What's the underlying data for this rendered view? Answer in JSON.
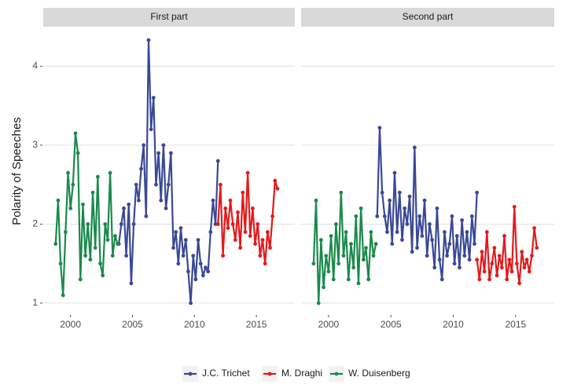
{
  "chart_data": [
    {
      "type": "line",
      "title": "First part",
      "ylabel": "Polarity of Speeches",
      "xlim": [
        1997.8,
        2018.1
      ],
      "xticks": [
        2000,
        2005,
        2010,
        2015
      ],
      "ylim": [
        0.86,
        4.48
      ],
      "yticks": [
        1,
        2,
        3,
        4
      ],
      "grid": "y",
      "series": [
        {
          "name": "J.C. Trichet",
          "color": "#3a4896",
          "x": [
            2003.9,
            2004.1,
            2004.3,
            2004.5,
            2004.7,
            2004.9,
            2005.1,
            2005.3,
            2005.5,
            2005.7,
            2005.9,
            2006.1,
            2006.3,
            2006.5,
            2006.7,
            2006.9,
            2007.1,
            2007.3,
            2007.5,
            2007.7,
            2007.9,
            2008.1,
            2008.3,
            2008.5,
            2008.7,
            2008.9,
            2009.1,
            2009.3,
            2009.5,
            2009.7,
            2009.9,
            2010.1,
            2010.3,
            2010.5,
            2010.7,
            2010.9,
            2011.1,
            2011.3,
            2011.5,
            2011.7,
            2011.9
          ],
          "values": [
            1.75,
            2.0,
            2.2,
            1.6,
            2.25,
            1.25,
            2.0,
            2.5,
            2.3,
            2.7,
            3.0,
            2.1,
            4.33,
            3.2,
            3.6,
            2.5,
            2.9,
            2.3,
            3.0,
            2.2,
            2.5,
            2.9,
            1.7,
            1.9,
            1.5,
            1.95,
            1.6,
            1.8,
            1.4,
            1.0,
            1.6,
            1.3,
            1.8,
            1.5,
            1.35,
            1.45,
            1.4,
            1.9,
            2.3,
            2.0,
            2.8
          ]
        },
        {
          "name": "M. Draghi",
          "color": "#e31a1c",
          "x": [
            2011.9,
            2012.1,
            2012.3,
            2012.5,
            2012.7,
            2012.9,
            2013.1,
            2013.3,
            2013.5,
            2013.7,
            2013.9,
            2014.1,
            2014.3,
            2014.5,
            2014.7,
            2014.9,
            2015.1,
            2015.3,
            2015.5,
            2015.7,
            2015.9,
            2016.1,
            2016.3,
            2016.5,
            2016.7
          ],
          "values": [
            2.0,
            2.5,
            1.6,
            2.2,
            1.95,
            2.3,
            2.0,
            1.8,
            2.15,
            1.7,
            2.4,
            1.9,
            2.65,
            1.85,
            2.2,
            1.75,
            2.0,
            1.6,
            1.8,
            1.5,
            1.9,
            1.7,
            2.1,
            2.55,
            2.45
          ]
        },
        {
          "name": "W. Duisenberg",
          "color": "#1a8a4c",
          "x": [
            1998.8,
            1999.0,
            1999.2,
            1999.4,
            1999.6,
            1999.8,
            2000.0,
            2000.2,
            2000.4,
            2000.6,
            2000.8,
            2001.0,
            2001.2,
            2001.4,
            2001.6,
            2001.8,
            2002.0,
            2002.2,
            2002.4,
            2002.6,
            2002.8,
            2003.0,
            2003.2,
            2003.4,
            2003.6,
            2003.8
          ],
          "values": [
            1.75,
            2.3,
            1.5,
            1.1,
            1.9,
            2.65,
            2.2,
            2.5,
            3.15,
            2.9,
            1.3,
            2.25,
            1.6,
            2.0,
            1.55,
            2.4,
            1.7,
            2.6,
            1.5,
            1.35,
            2.0,
            1.8,
            2.65,
            1.6,
            1.85,
            1.75
          ]
        }
      ]
    },
    {
      "type": "line",
      "title": "Second part",
      "xlim": [
        1997.8,
        2018.1
      ],
      "xticks": [
        2000,
        2005,
        2010,
        2015
      ],
      "ylim": [
        0.86,
        4.48
      ],
      "yticks": [
        1,
        2,
        3,
        4
      ],
      "grid": "y",
      "series": [
        {
          "name": "J.C. Trichet",
          "color": "#3a4896",
          "x": [
            2003.9,
            2004.1,
            2004.3,
            2004.5,
            2004.7,
            2004.9,
            2005.1,
            2005.3,
            2005.5,
            2005.7,
            2005.9,
            2006.1,
            2006.3,
            2006.5,
            2006.7,
            2006.9,
            2007.1,
            2007.3,
            2007.5,
            2007.7,
            2007.9,
            2008.1,
            2008.3,
            2008.5,
            2008.7,
            2008.9,
            2009.1,
            2009.3,
            2009.5,
            2009.7,
            2009.9,
            2010.1,
            2010.3,
            2010.5,
            2010.7,
            2010.9,
            2011.1,
            2011.3,
            2011.5,
            2011.7,
            2011.9
          ],
          "values": [
            2.1,
            3.22,
            2.4,
            2.1,
            1.9,
            2.3,
            1.75,
            2.65,
            1.9,
            2.4,
            1.8,
            2.2,
            2.0,
            2.35,
            1.65,
            2.97,
            1.7,
            2.1,
            1.85,
            2.3,
            1.6,
            2.0,
            1.8,
            1.45,
            2.2,
            1.55,
            1.3,
            1.9,
            1.6,
            1.75,
            2.1,
            1.5,
            1.85,
            1.45,
            2.05,
            1.6,
            1.9,
            1.55,
            2.1,
            1.75,
            2.4
          ]
        },
        {
          "name": "M. Draghi",
          "color": "#e31a1c",
          "x": [
            2011.9,
            2012.1,
            2012.3,
            2012.5,
            2012.7,
            2012.9,
            2013.1,
            2013.3,
            2013.5,
            2013.7,
            2013.9,
            2014.1,
            2014.3,
            2014.5,
            2014.7,
            2014.9,
            2015.1,
            2015.3,
            2015.5,
            2015.7,
            2015.9,
            2016.1,
            2016.3,
            2016.5,
            2016.7
          ],
          "values": [
            1.55,
            1.3,
            1.65,
            1.4,
            1.9,
            1.3,
            1.5,
            1.7,
            1.35,
            1.6,
            1.45,
            1.85,
            1.3,
            1.55,
            1.4,
            2.22,
            1.5,
            1.25,
            1.65,
            1.45,
            1.55,
            1.4,
            1.6,
            1.95,
            1.7
          ]
        },
        {
          "name": "W. Duisenberg",
          "color": "#1a8a4c",
          "x": [
            1998.8,
            1999.0,
            1999.2,
            1999.4,
            1999.6,
            1999.8,
            2000.0,
            2000.2,
            2000.4,
            2000.6,
            2000.8,
            2001.0,
            2001.2,
            2001.4,
            2001.6,
            2001.8,
            2002.0,
            2002.2,
            2002.4,
            2002.6,
            2002.8,
            2003.0,
            2003.2,
            2003.4,
            2003.6,
            2003.8
          ],
          "values": [
            1.5,
            2.3,
            1.0,
            1.8,
            1.2,
            1.6,
            1.4,
            1.85,
            1.3,
            2.0,
            1.5,
            2.4,
            1.6,
            1.9,
            1.3,
            1.75,
            1.45,
            2.1,
            1.25,
            2.2,
            1.55,
            1.7,
            1.3,
            1.9,
            1.6,
            1.75
          ]
        }
      ]
    }
  ]
}
